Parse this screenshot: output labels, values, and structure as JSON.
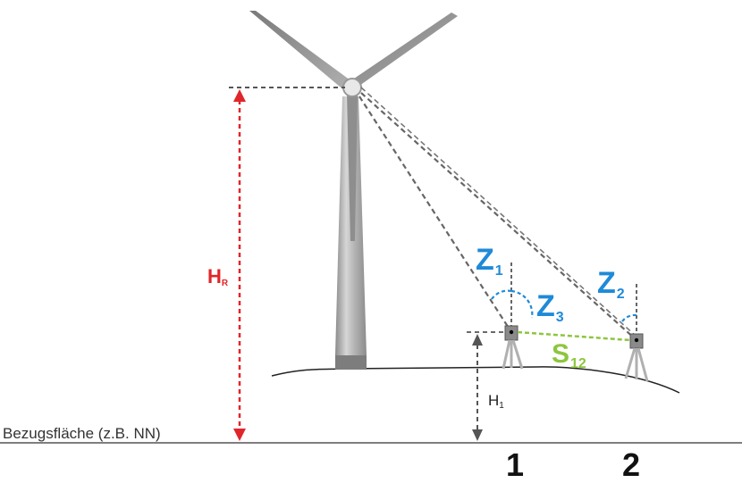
{
  "reference_plane": "Bezugsfläche (z.B. NN)",
  "labels": {
    "hr_main": "H",
    "hr_sub": "R",
    "h1_main": "H",
    "h1_sub": "1",
    "z1_main": "Z",
    "z1_sub": "1",
    "z2_main": "Z",
    "z2_sub": "2",
    "z3_main": "Z",
    "z3_sub": "3",
    "s12_main": "S",
    "s12_sub": "12",
    "station_1": "1",
    "station_2": "2"
  },
  "colors": {
    "hub_height_arrow": "#e0262a",
    "zenith_angles": "#1f8ad8",
    "distance_line": "#8dc63f",
    "sight_lines": "#666666",
    "turbine": "#9a9a9a"
  }
}
